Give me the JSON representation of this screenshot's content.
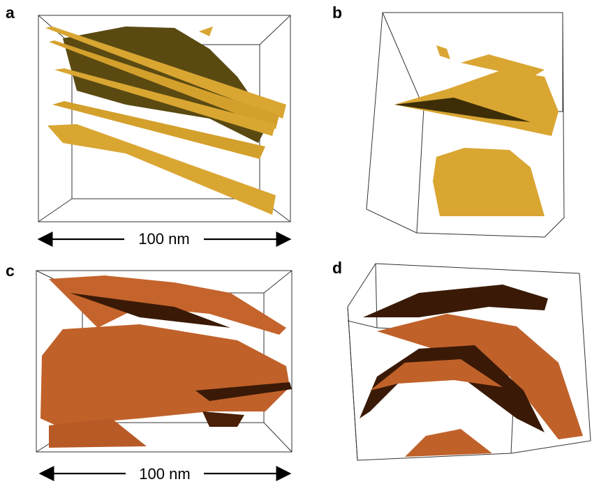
{
  "panels": [
    {
      "label": "a",
      "scale_bar": "100 nm"
    },
    {
      "label": "b"
    },
    {
      "label": "c",
      "scale_bar": "100 nm"
    },
    {
      "label": "d"
    }
  ]
}
